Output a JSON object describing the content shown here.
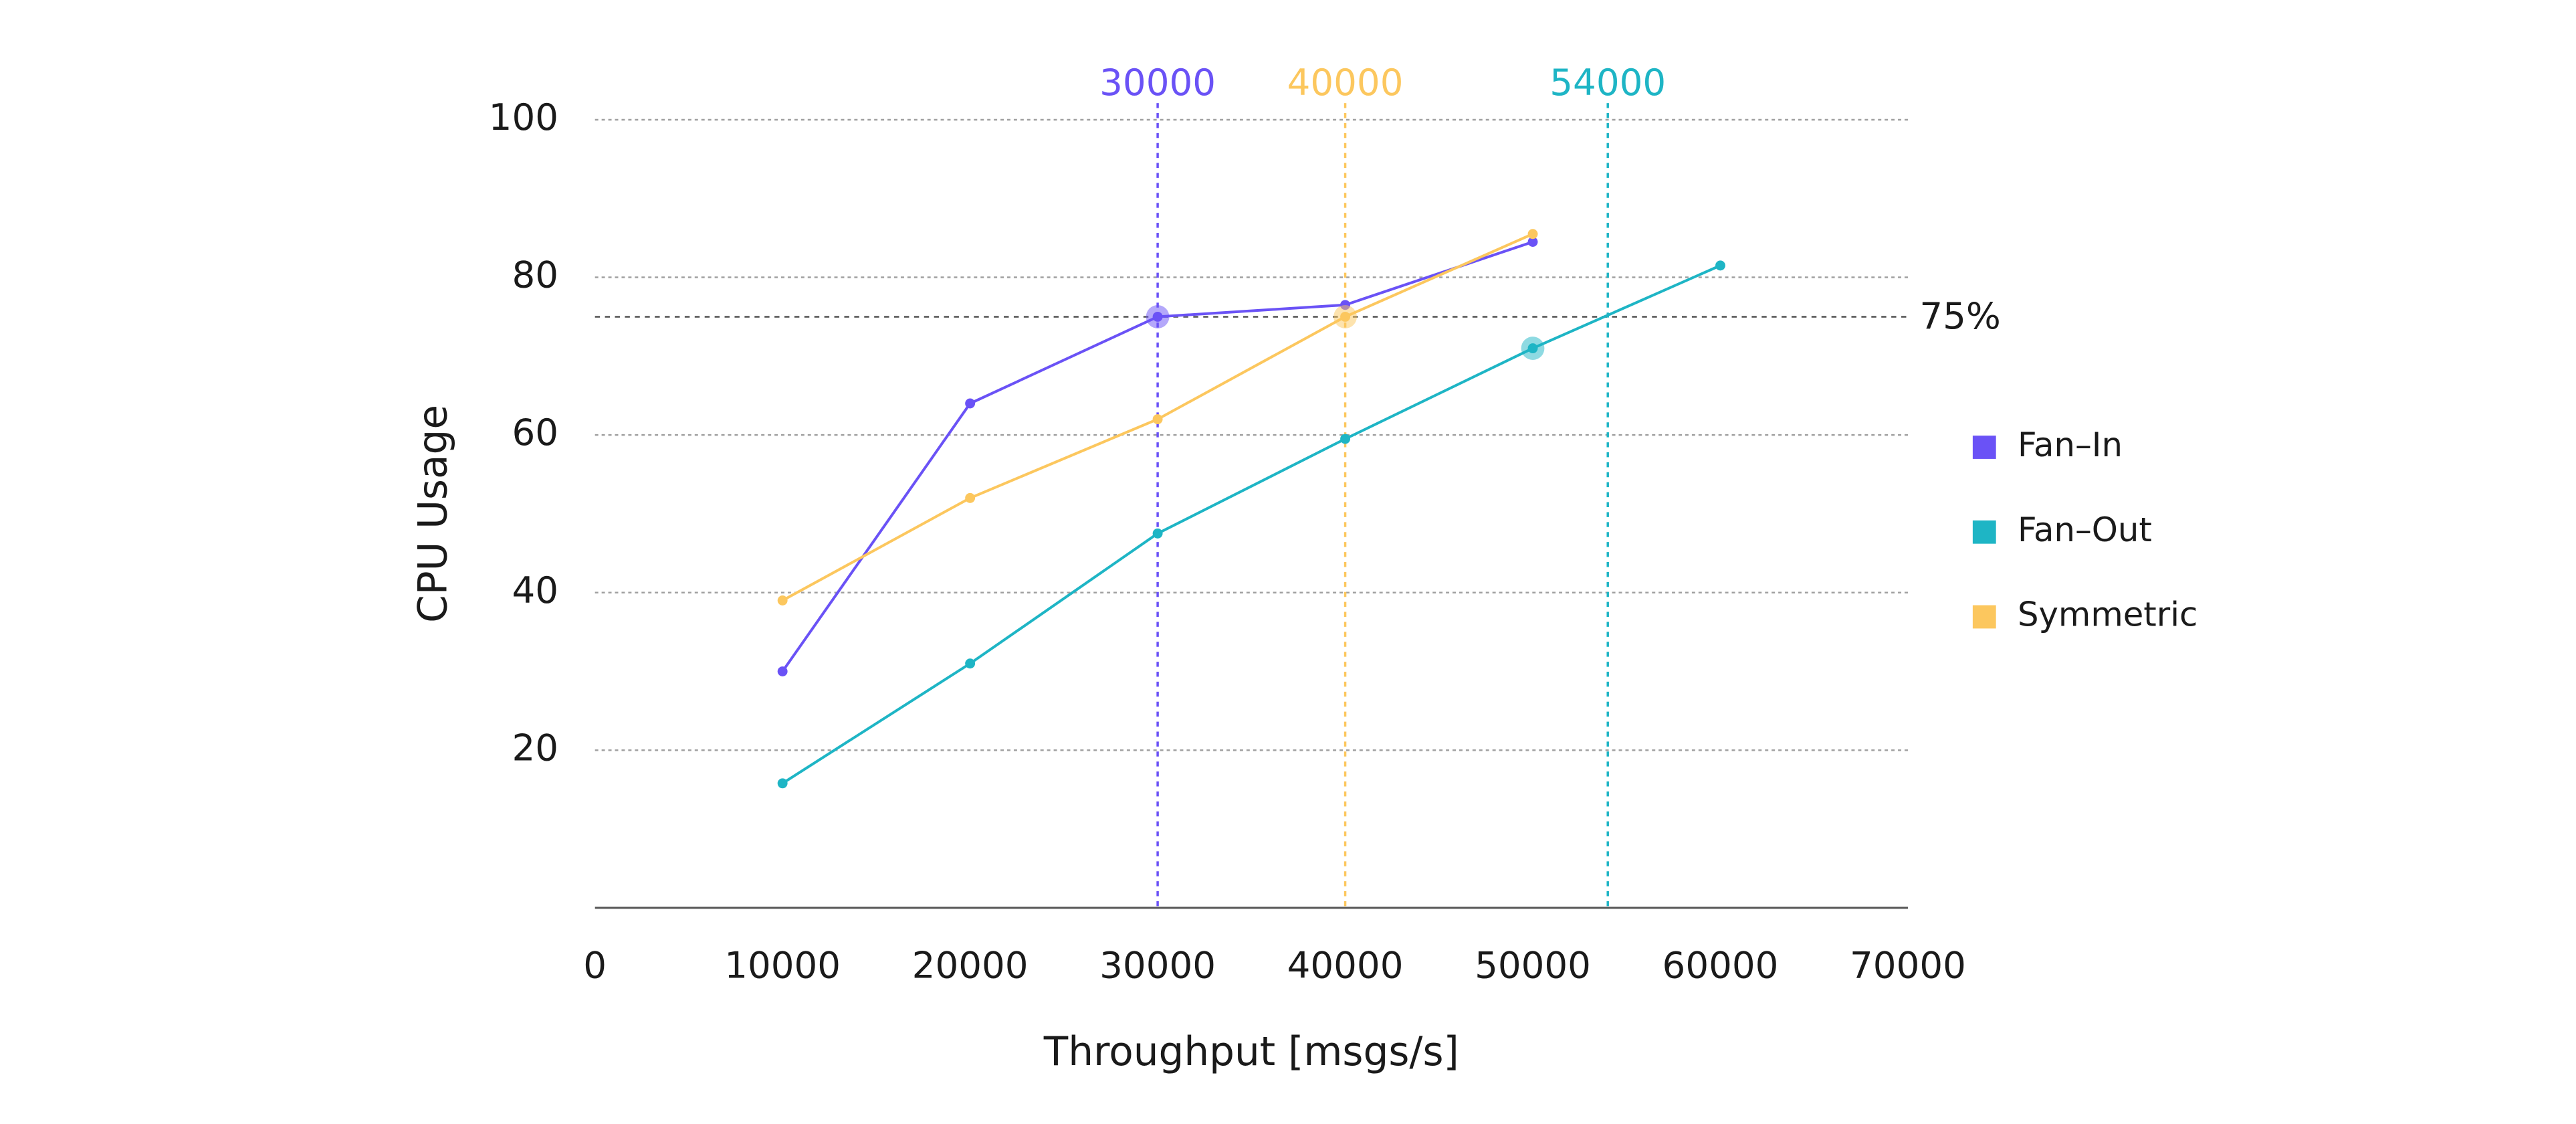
{
  "chart_data": {
    "type": "line",
    "x_label": "Throughput [msgs/s]",
    "y_label": "CPU Usage",
    "x": [
      10000,
      20000,
      30000,
      40000,
      50000,
      60000
    ],
    "xlim": [
      0,
      70000
    ],
    "xticks": [
      0,
      10000,
      20000,
      30000,
      40000,
      50000,
      60000,
      70000
    ],
    "ylim": [
      0,
      100
    ],
    "yticks": [
      20,
      40,
      60,
      80,
      100
    ],
    "grid": true,
    "legend": "right",
    "series": [
      {
        "name": "Fan–In",
        "color": "#6a52f6",
        "values": [
          30,
          64,
          75,
          76.5,
          84.5,
          null
        ],
        "highlight": 2
      },
      {
        "name": "Fan–Out",
        "color": "#1eb5c5",
        "values": [
          15.8,
          31,
          47.5,
          59.5,
          71,
          81.5
        ],
        "highlight": 4
      },
      {
        "name": "Symmetric",
        "color": "#fcc75e",
        "values": [
          39,
          52,
          62,
          75,
          85.5,
          null
        ],
        "highlight": 3
      }
    ],
    "threshold": {
      "value": 75,
      "label": "75%"
    },
    "markers": [
      {
        "x": 30000,
        "color": "#6a52f6"
      },
      {
        "x": 40000,
        "color": "#fcc75e"
      },
      {
        "x": 54000,
        "color": "#1eb5c5"
      }
    ]
  }
}
